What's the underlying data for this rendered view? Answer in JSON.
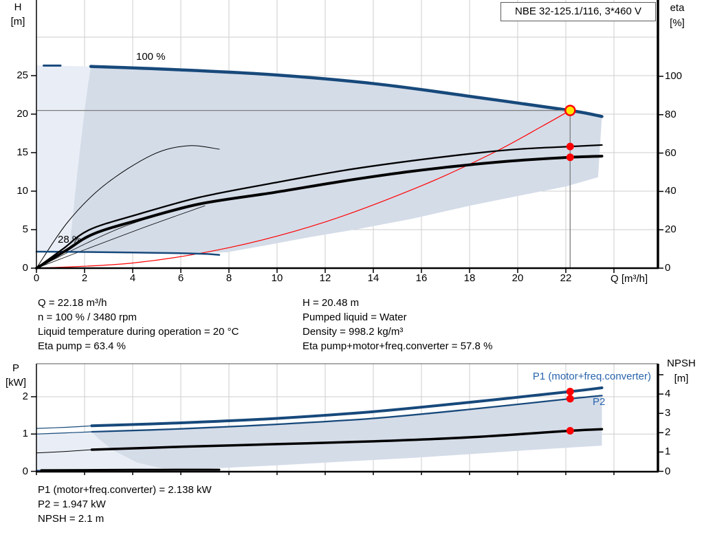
{
  "title_box": "NBE 32-125.1/116, 3*460 V",
  "colors": {
    "curve_blue": "#17497b",
    "label_blue": "#2a64ad",
    "envelope": "#d4dce8",
    "envelope_light": "#e9eef6",
    "grid": "#cccccc",
    "guide": "#7d7d7d",
    "red": "#ff0000",
    "marker_yellow": "#ffe600",
    "black": "#000000",
    "axis": "#000000",
    "border_gray": "#5a5a5a"
  },
  "axis_labels": {
    "h": "H",
    "h_unit": "[m]",
    "eta": "eta",
    "eta_unit": "[%]",
    "p": "P",
    "p_unit": "[kW]",
    "npsh": "NPSH",
    "npsh_unit": "[m]",
    "q": "Q [m³/h]"
  },
  "curve_labels": {
    "speed_100": "100 %",
    "speed_28": "28 %",
    "p1": "P1 (motor+freq.converter)",
    "p2": "P2"
  },
  "op_text": {
    "left": [
      "Q = 22.18 m³/h",
      "n = 100 % / 3480 rpm",
      "Liquid temperature during operation = 20 °C",
      "Eta pump = 63.4 %"
    ],
    "right": [
      "H = 20.48 m",
      "Pumped liquid = Water",
      "Density = 998.2 kg/m³",
      "Eta pump+motor+freq.converter = 57.8 %"
    ]
  },
  "power_text": [
    "P1 (motor+freq.converter) = 2.138 kW",
    "P2 = 1.947 kW",
    "NPSH = 2.1 m"
  ],
  "duty_point": {
    "Q_m3h": 22.18,
    "H_m": 20.48,
    "n_pct": 100,
    "n_rpm": 3480,
    "eta_pump_pct": 63.4,
    "eta_total_pct": 57.8,
    "P1_kW": 2.138,
    "P2_kW": 1.947,
    "NPSH_m": 2.1,
    "liquid": "Water",
    "temperature_C": 20,
    "density_kg_m3": 998.2
  },
  "chart_data": [
    {
      "id": "qh",
      "type": "line",
      "title": "NBE 32-125.1/116, 3*460 V",
      "x_axis": {
        "label": "Q [m³/h]",
        "min": 0,
        "max": 25.8,
        "ticks": [
          0,
          2,
          4,
          6,
          8,
          10,
          12,
          14,
          16,
          18,
          20,
          22
        ],
        "unlabeled_ticks": [
          24
        ]
      },
      "y_left": {
        "label": "H [m]",
        "min": 0,
        "max": 34.8,
        "ticks": [
          0,
          5,
          10,
          15,
          20,
          25
        ],
        "grid_extra": [
          30
        ]
      },
      "y_right": {
        "label": "eta [%]",
        "min": 0,
        "max": 139.8,
        "ticks": [
          0,
          20,
          40,
          60,
          80,
          100
        ],
        "unlabeled_ticks": []
      },
      "series": [
        {
          "name": "envelope-light",
          "axis": "left",
          "fill": "envelope_light",
          "points": [
            [
              0,
              26.35
            ],
            [
              2.26,
              26.2
            ],
            [
              2.13,
              23.5
            ],
            [
              2.0,
              20.5
            ],
            [
              1.85,
              16.5
            ],
            [
              1.7,
              12.5
            ],
            [
              1.55,
              8
            ],
            [
              1.42,
              4
            ],
            [
              1.35,
              2.1
            ],
            [
              0.9,
              2.12
            ],
            [
              0.45,
              2.14
            ],
            [
              0,
              2.14
            ]
          ]
        },
        {
          "name": "envelope-operating-range",
          "axis": "left",
          "fill": "envelope",
          "points": [
            [
              2.26,
              26.2
            ],
            [
              4,
              26.05
            ],
            [
              5.6,
              25.8
            ],
            [
              7.7,
              25.5
            ],
            [
              9.9,
              25.1
            ],
            [
              12,
              24.55
            ],
            [
              14.2,
              23.9
            ],
            [
              16.4,
              23.05
            ],
            [
              18.5,
              22.1
            ],
            [
              20.4,
              21.3
            ],
            [
              22.18,
              20.48
            ],
            [
              23.5,
              19.7
            ],
            [
              23.34,
              11.8
            ],
            [
              22,
              10.6
            ],
            [
              20.2,
              9.5
            ],
            [
              18,
              8.1
            ],
            [
              15.6,
              6.4
            ],
            [
              13.4,
              5.1
            ],
            [
              11.3,
              4.0
            ],
            [
              9.6,
              3.0
            ],
            [
              7.9,
              2.05
            ],
            [
              6,
              1.93
            ],
            [
              4.5,
              1.98
            ],
            [
              3,
              2.03
            ],
            [
              2,
              2.07
            ],
            [
              1.35,
              2.1
            ],
            [
              1.42,
              4
            ],
            [
              1.55,
              8
            ],
            [
              1.7,
              12.5
            ],
            [
              1.85,
              16.5
            ],
            [
              2.0,
              20.5
            ],
            [
              2.13,
              23.5
            ]
          ]
        },
        {
          "name": "system-curve",
          "axis": "left",
          "stroke": "red",
          "width": 1.2,
          "points": [
            [
              0,
              0
            ],
            [
              4,
              0.67
            ],
            [
              8,
              2.66
            ],
            [
              12,
              6.0
            ],
            [
              16,
              10.7
            ],
            [
              19,
              15.0
            ],
            [
              21,
              18.4
            ],
            [
              22.18,
              20.48
            ]
          ]
        },
        {
          "name": "fan-line-1",
          "axis": "right",
          "stroke": "black",
          "width": 0.8,
          "points": [
            [
              0,
              0
            ],
            [
              3.6,
              21.5
            ],
            [
              6.9,
              33.5
            ]
          ]
        },
        {
          "name": "fan-line-2",
          "axis": "right",
          "stroke": "black",
          "width": 0.8,
          "points": [
            [
              0,
              0
            ],
            [
              4.2,
              20
            ],
            [
              7.0,
              32.5
            ]
          ]
        },
        {
          "name": "eta-arc-reduced-speed",
          "axis": "right",
          "stroke": "black",
          "width": 1,
          "points": [
            [
              0,
              0
            ],
            [
              1.3,
              24
            ],
            [
              2.8,
              43
            ],
            [
              4.8,
              59
            ],
            [
              6.3,
              63.8
            ],
            [
              7.6,
              62
            ]
          ]
        },
        {
          "name": "curve-28pct",
          "axis": "left",
          "stroke": "curve_blue",
          "width": 2.5,
          "points": [
            [
              0,
              2.14
            ],
            [
              2,
              2.1
            ],
            [
              4,
              2.03
            ],
            [
              6,
              1.95
            ],
            [
              7,
              1.85
            ],
            [
              7.6,
              1.72
            ]
          ]
        },
        {
          "name": "eta-pump-curve",
          "axis": "right",
          "stroke": "black",
          "width": 2.3,
          "points": [
            [
              0,
              0
            ],
            [
              1.1,
              10
            ],
            [
              2.2,
              20
            ],
            [
              4.2,
              28
            ],
            [
              6.8,
              37
            ],
            [
              9.9,
              44.5
            ],
            [
              12.8,
              51
            ],
            [
              15.6,
              56
            ],
            [
              18.5,
              60.3
            ],
            [
              20.2,
              62.2
            ],
            [
              22.18,
              63.4
            ],
            [
              23.5,
              64.2
            ]
          ]
        },
        {
          "name": "eta-total-curve",
          "axis": "right",
          "stroke": "black",
          "width": 4,
          "points": [
            [
              0,
              0
            ],
            [
              1.2,
              9
            ],
            [
              2.4,
              18
            ],
            [
              4.5,
              26
            ],
            [
              6.8,
              33.5
            ],
            [
              9.9,
              39.5
            ],
            [
              12.8,
              45.5
            ],
            [
              15.6,
              50.5
            ],
            [
              18.5,
              54.5
            ],
            [
              20.2,
              56.3
            ],
            [
              22.18,
              57.8
            ],
            [
              23.5,
              58.4
            ]
          ]
        },
        {
          "name": "curve-100pct-dash",
          "axis": "left",
          "stroke": "curve_blue",
          "width": 3,
          "points": [
            [
              0.3,
              26.3
            ],
            [
              1.0,
              26.3
            ]
          ]
        },
        {
          "name": "curve-100pct",
          "axis": "left",
          "stroke": "curve_blue",
          "width": 4.5,
          "points": [
            [
              2.26,
              26.2
            ],
            [
              5.6,
              25.8
            ],
            [
              9.9,
              25.1
            ],
            [
              14.2,
              23.9
            ],
            [
              18.5,
              22.1
            ],
            [
              22.18,
              20.48
            ],
            [
              23.5,
              19.7
            ]
          ]
        }
      ],
      "guides": [
        {
          "type": "h",
          "v": 20.48,
          "q0": 0,
          "q1": 22.18
        },
        {
          "type": "v",
          "q": 22.18,
          "v0": 0,
          "v1": 20.48
        }
      ],
      "markers": [
        {
          "kind": "dot",
          "axis": "right",
          "q": 22.18,
          "v": 63.4
        },
        {
          "kind": "dot",
          "axis": "right",
          "q": 22.18,
          "v": 57.8
        },
        {
          "kind": "duty",
          "axis": "left",
          "q": 22.18,
          "v": 20.48
        }
      ]
    },
    {
      "id": "pq",
      "type": "line",
      "title": "",
      "x_axis": {
        "label": "",
        "min": 0,
        "max": 25.8,
        "ticks": [
          0,
          2,
          4,
          6,
          8,
          10,
          12,
          14,
          16,
          18,
          20,
          22
        ],
        "unlabeled_ticks": [
          24
        ]
      },
      "y_left": {
        "label": "P [kW]",
        "min": 0,
        "max": 2.9,
        "ticks": [
          0,
          1,
          2
        ],
        "grid_extra": []
      },
      "y_right": {
        "label": "NPSH [m]",
        "min": 0,
        "max": 5.6,
        "ticks": [
          0,
          1,
          2,
          3,
          4
        ],
        "unlabeled_ticks": [
          5
        ]
      },
      "series": [
        {
          "name": "envelope-light-power",
          "axis": "left",
          "fill": "envelope_light",
          "points": [
            [
              0,
              1.02
            ],
            [
              2.3,
              1.06
            ],
            [
              2.6,
              0.86
            ],
            [
              3.2,
              0.56
            ],
            [
              4.2,
              0.23
            ],
            [
              5.6,
              0.01
            ],
            [
              0,
              0.01
            ]
          ]
        },
        {
          "name": "envelope-power",
          "axis": "left",
          "fill": "envelope",
          "points": [
            [
              2.3,
              1.06
            ],
            [
              4,
              1.1
            ],
            [
              6,
              1.14
            ],
            [
              8,
              1.2
            ],
            [
              10,
              1.26
            ],
            [
              12,
              1.33
            ],
            [
              14,
              1.42
            ],
            [
              16,
              1.53
            ],
            [
              18,
              1.66
            ],
            [
              20,
              1.8
            ],
            [
              22.18,
              1.947
            ],
            [
              23.5,
              2.02
            ],
            [
              23.5,
              0.69
            ],
            [
              22,
              0.63
            ],
            [
              20,
              0.55
            ],
            [
              18,
              0.46
            ],
            [
              15.6,
              0.36
            ],
            [
              13,
              0.27
            ],
            [
              10,
              0.16
            ],
            [
              8,
              0.1
            ],
            [
              7,
              0.07
            ],
            [
              5.65,
              0.01
            ],
            [
              4.2,
              0.23
            ],
            [
              3.2,
              0.56
            ],
            [
              2.6,
              0.86
            ]
          ]
        },
        {
          "name": "p2-min-segment",
          "axis": "left",
          "stroke": "curve_blue",
          "width": 2,
          "points": [
            [
              0,
              0.02
            ],
            [
              2.0,
              0.02
            ]
          ]
        },
        {
          "name": "p-min-segment",
          "axis": "left",
          "stroke": "black",
          "width": 3,
          "points": [
            [
              0.2,
              0.03
            ],
            [
              4,
              0.04
            ],
            [
              7.6,
              0.045
            ]
          ]
        },
        {
          "name": "p1-curve-thin",
          "axis": "left",
          "stroke": "curve_blue",
          "width": 1.2,
          "points": [
            [
              0,
              1.15
            ],
            [
              1.2,
              1.18
            ],
            [
              2.3,
              1.22
            ]
          ]
        },
        {
          "name": "p2-curve-thin",
          "axis": "left",
          "stroke": "curve_blue",
          "width": 1.2,
          "points": [
            [
              0,
              1.0
            ],
            [
              1.2,
              1.03
            ],
            [
              2.3,
              1.06
            ]
          ]
        },
        {
          "name": "npsh-curve-thin",
          "axis": "right",
          "stroke": "black",
          "width": 1,
          "points": [
            [
              0,
              0.95
            ],
            [
              1.2,
              1.03
            ],
            [
              2.3,
              1.12
            ]
          ]
        },
        {
          "name": "npsh-curve",
          "axis": "right",
          "stroke": "black",
          "width": 3.5,
          "points": [
            [
              2.3,
              1.12
            ],
            [
              6,
              1.27
            ],
            [
              10,
              1.41
            ],
            [
              14,
              1.55
            ],
            [
              18,
              1.76
            ],
            [
              22.18,
              2.1
            ],
            [
              23.5,
              2.18
            ]
          ]
        },
        {
          "name": "p2-curve",
          "axis": "left",
          "stroke": "curve_blue",
          "width": 2.3,
          "points": [
            [
              2.3,
              1.06
            ],
            [
              6,
              1.14
            ],
            [
              10,
              1.26
            ],
            [
              14,
              1.42
            ],
            [
              18,
              1.66
            ],
            [
              22.18,
              1.947
            ],
            [
              23.5,
              2.03
            ]
          ]
        },
        {
          "name": "p1-curve",
          "axis": "left",
          "stroke": "curve_blue",
          "width": 4,
          "points": [
            [
              2.3,
              1.22
            ],
            [
              6,
              1.3
            ],
            [
              10,
              1.42
            ],
            [
              14,
              1.6
            ],
            [
              18,
              1.85
            ],
            [
              22.18,
              2.138
            ],
            [
              23.5,
              2.24
            ]
          ]
        }
      ],
      "guides": [],
      "markers": [
        {
          "kind": "dot",
          "axis": "left",
          "q": 22.18,
          "v": 2.138
        },
        {
          "kind": "dot",
          "axis": "left",
          "q": 22.18,
          "v": 1.947
        },
        {
          "kind": "dot",
          "axis": "right",
          "q": 22.18,
          "v": 2.1
        }
      ]
    }
  ]
}
